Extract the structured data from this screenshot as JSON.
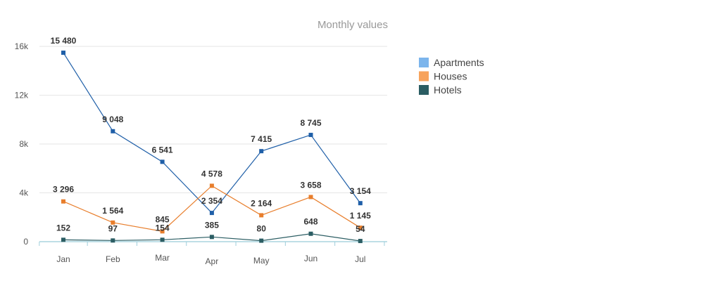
{
  "chart_data": {
    "type": "line",
    "subtitle": "Monthly values",
    "categories": [
      "Jan",
      "Feb",
      "Mar",
      "Apr",
      "May",
      "Jun",
      "Jul"
    ],
    "y_ticks": [
      {
        "value": 0,
        "label": "0"
      },
      {
        "value": 4000,
        "label": "4k"
      },
      {
        "value": 8000,
        "label": "8k"
      },
      {
        "value": 12000,
        "label": "12k"
      },
      {
        "value": 16000,
        "label": "16k"
      }
    ],
    "ylim": [
      0,
      17000
    ],
    "grid": true,
    "legend_position": "right",
    "series": [
      {
        "name": "Apartments",
        "legend_color": "#7cb5ec",
        "line_color": "#1f5fa8",
        "values": [
          15480,
          9048,
          6541,
          2354,
          7415,
          8745,
          3154
        ],
        "labels": [
          "15 480",
          "9 048",
          "6 541",
          "2 354",
          "7 415",
          "8 745",
          "3 154"
        ]
      },
      {
        "name": "Houses",
        "legend_color": "#f7a35c",
        "line_color": "#e87e2c",
        "values": [
          3296,
          1564,
          845,
          4578,
          2164,
          3658,
          1145
        ],
        "labels": [
          "3 296",
          "1 564",
          "845",
          "4 578",
          "2 164",
          "3 658",
          "1 145"
        ]
      },
      {
        "name": "Hotels",
        "legend_color": "#2b5d63",
        "line_color": "#2b5d63",
        "values": [
          152,
          97,
          154,
          385,
          80,
          648,
          54
        ],
        "labels": [
          "152",
          "97",
          "154",
          "385",
          "80",
          "648",
          "54"
        ]
      }
    ]
  }
}
